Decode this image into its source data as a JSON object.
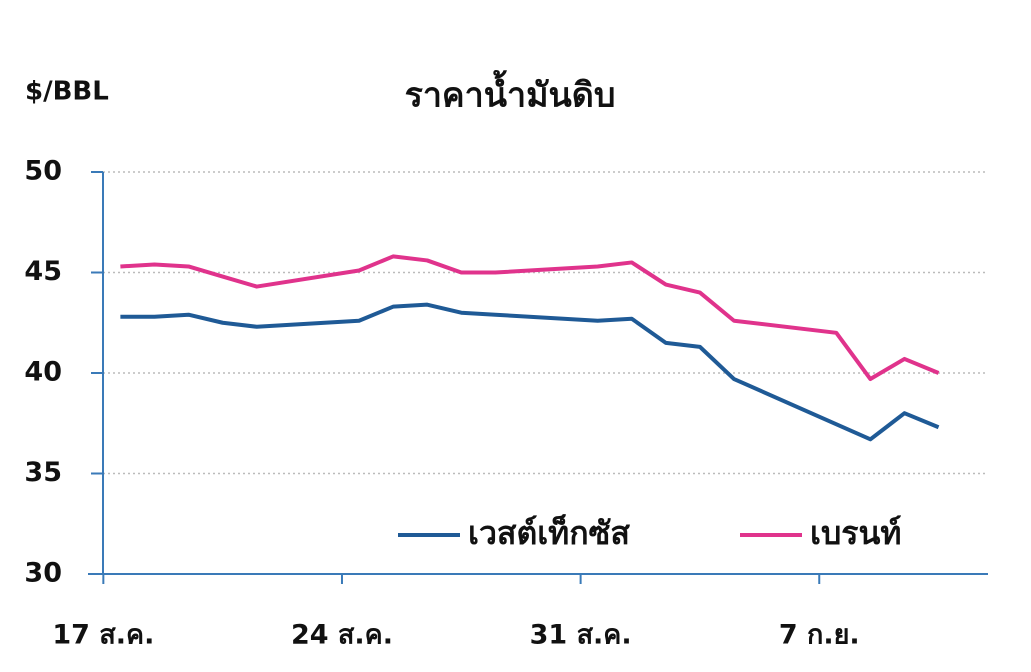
{
  "chart_data": {
    "type": "line",
    "title": "ราคาน้ำมันดิบ",
    "y_label": "$/BBL",
    "xlim": [
      -0.45,
      25.95
    ],
    "xticks": [
      {
        "value": 0,
        "label": "17 ส.ค."
      },
      {
        "value": 7,
        "label": "24 ส.ค."
      },
      {
        "value": 14,
        "label": "31 ส.ค."
      },
      {
        "value": 21,
        "label": "7 ก.ย."
      }
    ],
    "ylim": [
      30,
      50
    ],
    "yticks": [
      30,
      35,
      40,
      45,
      50
    ],
    "grid": true,
    "series": [
      {
        "name": "เวสต์เท็กซัส",
        "color": "#1f5a96",
        "x": [
          0.5,
          1.5,
          2.5,
          3.5,
          4.5,
          7.5,
          8.5,
          9.5,
          10.5,
          11.5,
          14.5,
          15.5,
          16.5,
          17.5,
          18.5,
          22.5,
          23.5,
          24.5
        ],
        "values": [
          42.8,
          42.8,
          42.9,
          42.5,
          42.3,
          42.6,
          43.3,
          43.4,
          43.0,
          42.9,
          42.6,
          42.7,
          41.5,
          41.3,
          39.7,
          36.7,
          38.0,
          37.3
        ]
      },
      {
        "name": "เบรนท์",
        "color": "#e0338c",
        "x": [
          0.5,
          1.5,
          2.5,
          3.5,
          4.5,
          7.5,
          8.5,
          9.5,
          10.5,
          11.5,
          14.5,
          15.5,
          16.5,
          17.5,
          18.5,
          21.5,
          22.5,
          23.5,
          24.5
        ],
        "values": [
          45.3,
          45.4,
          45.3,
          44.8,
          44.3,
          45.1,
          45.8,
          45.6,
          45.0,
          45.0,
          45.3,
          45.5,
          44.4,
          44.0,
          42.6,
          42.0,
          39.7,
          40.7,
          40.0
        ]
      }
    ]
  }
}
